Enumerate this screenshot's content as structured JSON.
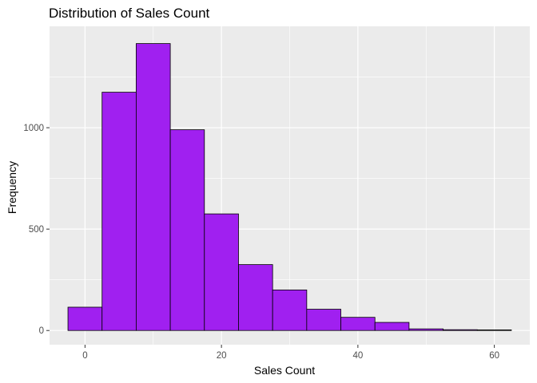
{
  "chart_data": {
    "type": "bar",
    "title": "Distribution of Sales Count",
    "xlabel": "Sales Count",
    "ylabel": "Frequency",
    "x_bins": [
      [
        -2.5,
        2.5
      ],
      [
        2.5,
        7.5
      ],
      [
        7.5,
        12.5
      ],
      [
        12.5,
        17.5
      ],
      [
        17.5,
        22.5
      ],
      [
        22.5,
        27.5
      ],
      [
        27.5,
        32.5
      ],
      [
        32.5,
        37.5
      ],
      [
        37.5,
        42.5
      ],
      [
        42.5,
        47.5
      ],
      [
        47.5,
        52.5
      ],
      [
        52.5,
        57.5
      ],
      [
        57.5,
        62.5
      ]
    ],
    "values": [
      115,
      1175,
      1415,
      990,
      575,
      325,
      200,
      105,
      65,
      40,
      8,
      4,
      3
    ],
    "xlim": [
      -5.2,
      65.2
    ],
    "ylim": [
      -70,
      1500
    ],
    "x_ticks": [
      0,
      20,
      40,
      60
    ],
    "x_tick_labels": [
      "0",
      "20",
      "40",
      "60"
    ],
    "y_ticks": [
      0,
      500,
      1000
    ],
    "y_tick_labels": [
      "0",
      "500",
      "1000"
    ],
    "grid": true,
    "colors": {
      "bar_fill": "#A020F0",
      "bar_outline": "#000000",
      "panel_background": "#EBEBEB",
      "grid": "#FFFFFF"
    }
  }
}
